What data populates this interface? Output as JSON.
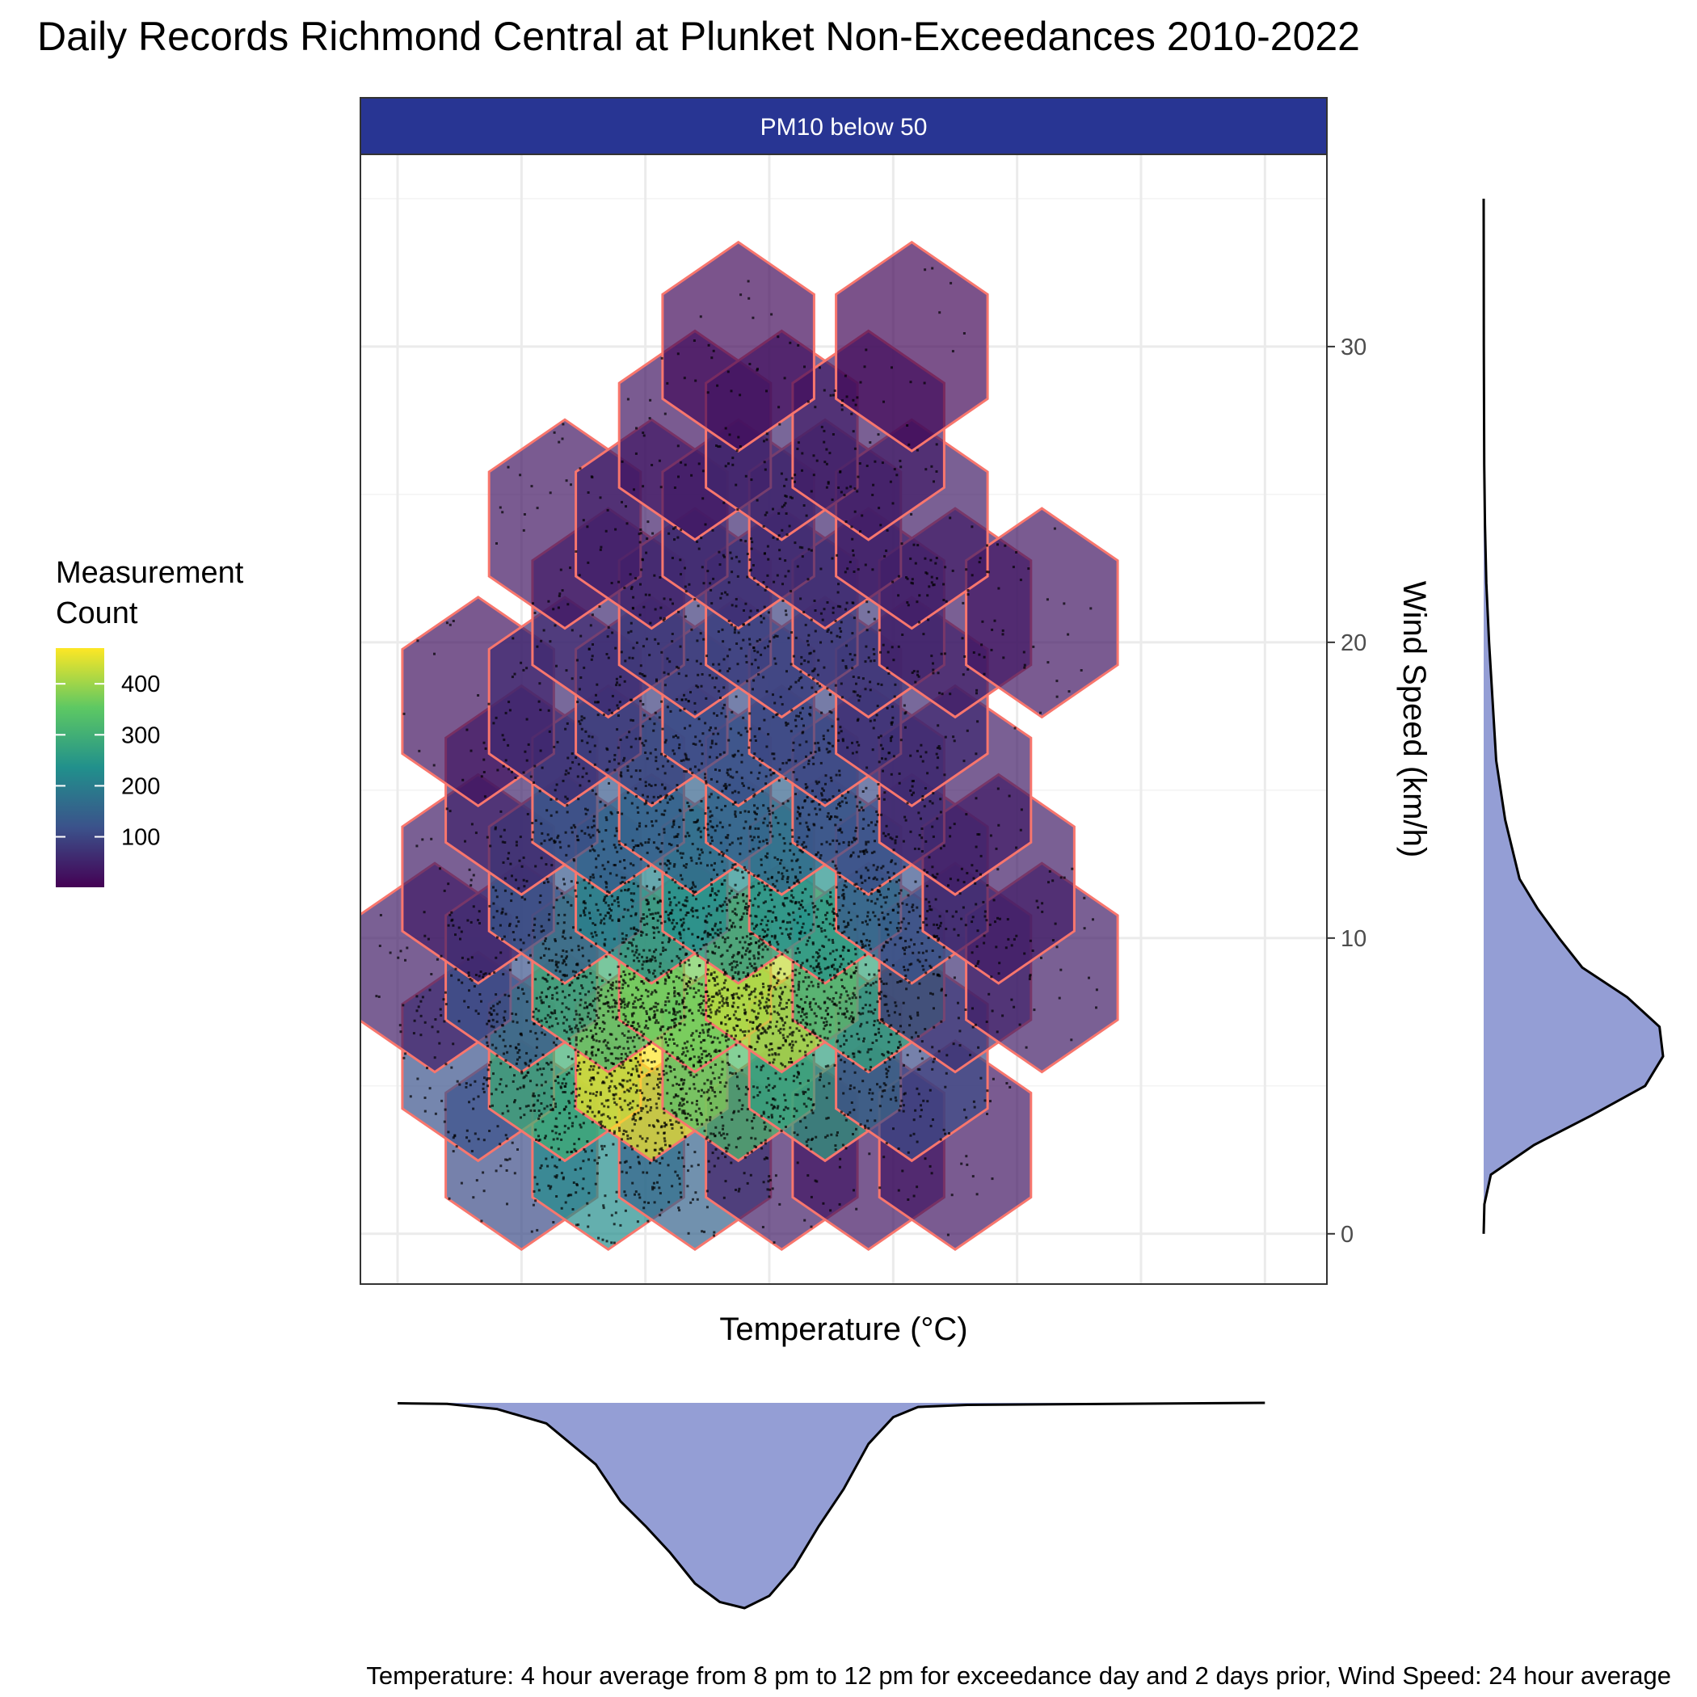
{
  "title": "Daily Records Richmond Central at Plunket Non-Exceedances 2010-2022",
  "facet_label": "PM10 below 50",
  "caption": "Temperature: 4 hour average from 8 pm to 12 pm for exceedance day and 2 days prior, Wind Speed: 24 hour average",
  "legend": {
    "title_lines": [
      "Measurement",
      "Count"
    ],
    "breaks": [
      "100",
      "200",
      "300",
      "400"
    ],
    "break_values": [
      100,
      200,
      300,
      400
    ],
    "range": [
      1,
      470
    ]
  },
  "colors": {
    "strip_fill": "#283593",
    "hex_outline": "#F8766D",
    "marginal_fill": "#7986CB",
    "point": "#000000",
    "viridis": [
      "#440154",
      "#3B528B",
      "#21908C",
      "#5DC863",
      "#FDE725"
    ]
  },
  "chart_data": {
    "type": "hexbin",
    "xlabel": "Temperature (°C)",
    "ylabel": "Wind Speed (km/h)",
    "xlim": [
      -3.5,
      35.5
    ],
    "ylim": [
      -1.7,
      36.5
    ],
    "x_grid": [
      -2,
      3,
      8,
      13,
      18,
      23,
      28,
      33
    ],
    "y_ticks": [
      0,
      10,
      20,
      30
    ],
    "y_tick_labels": [
      "0",
      "10",
      "20",
      "30"
    ],
    "hex_radius": 3.53,
    "hex_rows": [
      {
        "y": 3.0,
        "x": [
          3.0,
          6.5,
          10.0,
          13.5,
          17.0,
          20.5
        ],
        "counts": [
          110,
          230,
          150,
          40,
          30,
          30
        ]
      },
      {
        "y": 6.0,
        "x": [
          1.25,
          4.75,
          8.25,
          11.75,
          15.25,
          18.75
        ],
        "counts": [
          120,
          300,
          470,
          330,
          270,
          110
        ]
      },
      {
        "y": 9.0,
        "x": [
          -0.5,
          3.0,
          6.5,
          10.0,
          13.5,
          17.0,
          20.5,
          24.0
        ],
        "counts": [
          40,
          120,
          300,
          370,
          430,
          280,
          70,
          40
        ]
      },
      {
        "y": 12.0,
        "x": [
          1.25,
          4.75,
          8.25,
          11.75,
          15.25,
          18.75,
          22.25
        ],
        "counts": [
          40,
          130,
          210,
          230,
          240,
          120,
          40
        ]
      },
      {
        "y": 15.0,
        "x": [
          3.0,
          6.5,
          10.0,
          13.5,
          17.0,
          20.5
        ],
        "counts": [
          50,
          130,
          150,
          150,
          110,
          40
        ]
      },
      {
        "y": 18.0,
        "x": [
          1.25,
          4.75,
          8.25,
          11.75,
          15.25,
          18.75
        ],
        "counts": [
          25,
          60,
          90,
          110,
          100,
          60
        ]
      },
      {
        "y": 21.0,
        "x": [
          6.5,
          10.0,
          13.5,
          17.0,
          20.5,
          24.0
        ],
        "counts": [
          60,
          85,
          95,
          80,
          40,
          30
        ]
      },
      {
        "y": 24.0,
        "x": [
          4.75,
          8.25,
          11.75,
          15.25,
          18.75
        ],
        "counts": [
          30,
          45,
          60,
          55,
          40
        ]
      },
      {
        "y": 27.0,
        "x": [
          10.0,
          13.5,
          17.0
        ],
        "counts": [
          30,
          55,
          40
        ]
      },
      {
        "y": 30.0,
        "x": [
          11.75,
          18.75
        ],
        "counts": [
          15,
          12
        ]
      }
    ],
    "x_density": [
      [
        -2,
        0.002
      ],
      [
        0,
        0.005
      ],
      [
        2,
        0.03
      ],
      [
        4,
        0.1
      ],
      [
        6,
        0.3
      ],
      [
        7,
        0.48
      ],
      [
        8,
        0.6
      ],
      [
        9,
        0.73
      ],
      [
        10,
        0.88
      ],
      [
        11,
        0.97
      ],
      [
        12,
        1.0
      ],
      [
        13,
        0.94
      ],
      [
        14,
        0.8
      ],
      [
        15,
        0.6
      ],
      [
        16,
        0.42
      ],
      [
        17,
        0.2
      ],
      [
        18,
        0.07
      ],
      [
        19,
        0.02
      ],
      [
        21,
        0.01
      ],
      [
        33,
        0.0
      ]
    ],
    "y_density": [
      [
        0,
        0.0
      ],
      [
        1,
        0.004
      ],
      [
        2,
        0.04
      ],
      [
        3,
        0.28
      ],
      [
        4,
        0.6
      ],
      [
        5,
        0.9
      ],
      [
        6,
        1.0
      ],
      [
        7,
        0.98
      ],
      [
        8,
        0.8
      ],
      [
        9,
        0.55
      ],
      [
        10,
        0.42
      ],
      [
        11,
        0.3
      ],
      [
        12,
        0.2
      ],
      [
        14,
        0.12
      ],
      [
        16,
        0.07
      ],
      [
        18,
        0.05
      ],
      [
        20,
        0.03
      ],
      [
        22,
        0.015
      ],
      [
        24,
        0.007
      ],
      [
        26,
        0.003
      ],
      [
        30,
        0.001
      ],
      [
        35,
        0.0
      ]
    ]
  }
}
